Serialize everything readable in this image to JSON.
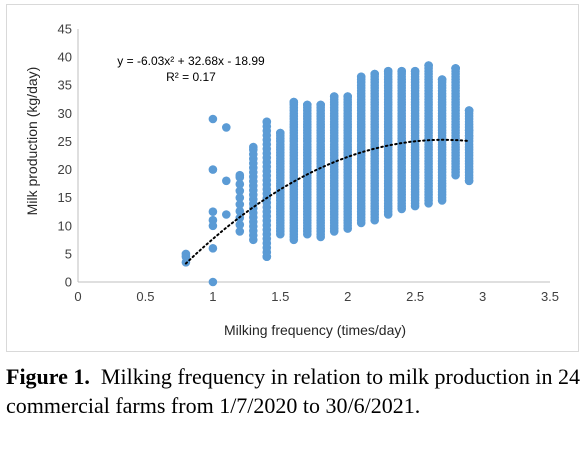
{
  "chart_data": {
    "type": "scatter",
    "xlabel": "Milking frequency (times/day)",
    "ylabel": "Milk production (kg/day)",
    "xlim": [
      0,
      3.5
    ],
    "ylim": [
      0,
      45
    ],
    "xticks": [
      "0",
      "0.5",
      "1",
      "1.5",
      "2",
      "2.5",
      "3",
      "3.5"
    ],
    "yticks": [
      "0",
      "5",
      "10",
      "15",
      "20",
      "25",
      "30",
      "35",
      "40",
      "45"
    ],
    "grid": false,
    "marker_color": "#5b9bd5",
    "trendline": {
      "type": "polynomial-2",
      "coefficients": [
        -6.03,
        32.68,
        -18.99
      ],
      "x_range": [
        0.8,
        2.9
      ],
      "style": "dotted",
      "color": "#000000"
    },
    "annotations": {
      "equation": "y = -6.03x² + 32.68x - 18.99",
      "r_squared": "R² = 0.17"
    },
    "column_ranges": [
      {
        "x": 0.8,
        "ymin": 3.5,
        "ymax": 5
      },
      {
        "x": 1.0,
        "ymin": 0,
        "ymax": 29
      },
      {
        "x": 1.1,
        "ymin": 12,
        "ymax": 27.5
      },
      {
        "x": 1.2,
        "ymin": 9,
        "ymax": 19
      },
      {
        "x": 1.3,
        "ymin": 7.5,
        "ymax": 24
      },
      {
        "x": 1.4,
        "ymin": 4.5,
        "ymax": 28.5
      },
      {
        "x": 1.5,
        "ymin": 8.5,
        "ymax": 26.5
      },
      {
        "x": 1.6,
        "ymin": 7.5,
        "ymax": 32
      },
      {
        "x": 1.7,
        "ymin": 8.5,
        "ymax": 31.5
      },
      {
        "x": 1.8,
        "ymin": 8,
        "ymax": 31.5
      },
      {
        "x": 1.9,
        "ymin": 9,
        "ymax": 33
      },
      {
        "x": 2.0,
        "ymin": 9.5,
        "ymax": 33
      },
      {
        "x": 2.1,
        "ymin": 10.5,
        "ymax": 36.5
      },
      {
        "x": 2.2,
        "ymin": 11,
        "ymax": 37
      },
      {
        "x": 2.3,
        "ymin": 12,
        "ymax": 37.5
      },
      {
        "x": 2.4,
        "ymin": 13,
        "ymax": 37.5
      },
      {
        "x": 2.5,
        "ymin": 13.5,
        "ymax": 37.5
      },
      {
        "x": 2.6,
        "ymin": 14,
        "ymax": 38.5
      },
      {
        "x": 2.7,
        "ymin": 14.5,
        "ymax": 36
      },
      {
        "x": 2.8,
        "ymin": 19,
        "ymax": 38
      },
      {
        "x": 2.9,
        "ymin": 18,
        "ymax": 30.5
      }
    ],
    "isolated_points": [
      {
        "x": 1.0,
        "y": 29
      },
      {
        "x": 1.0,
        "y": 20
      },
      {
        "x": 1.0,
        "y": 12.5
      },
      {
        "x": 1.0,
        "y": 11
      },
      {
        "x": 1.0,
        "y": 10
      },
      {
        "x": 1.0,
        "y": 6
      },
      {
        "x": 1.0,
        "y": 0
      },
      {
        "x": 1.1,
        "y": 27.5
      },
      {
        "x": 1.1,
        "y": 18
      },
      {
        "x": 1.1,
        "y": 12
      },
      {
        "x": 1.4,
        "y": 4.5
      },
      {
        "x": 2.8,
        "y": 38
      },
      {
        "x": 2.9,
        "y": 30.5
      },
      {
        "x": 2.9,
        "y": 27
      },
      {
        "x": 2.9,
        "y": 26
      },
      {
        "x": 2.9,
        "y": 18
      }
    ]
  },
  "caption": {
    "label": "Figure 1.",
    "text": "Milking frequency in relation to milk production in 24 commercial farms from 1/7/2020 to 30/6/2021."
  }
}
